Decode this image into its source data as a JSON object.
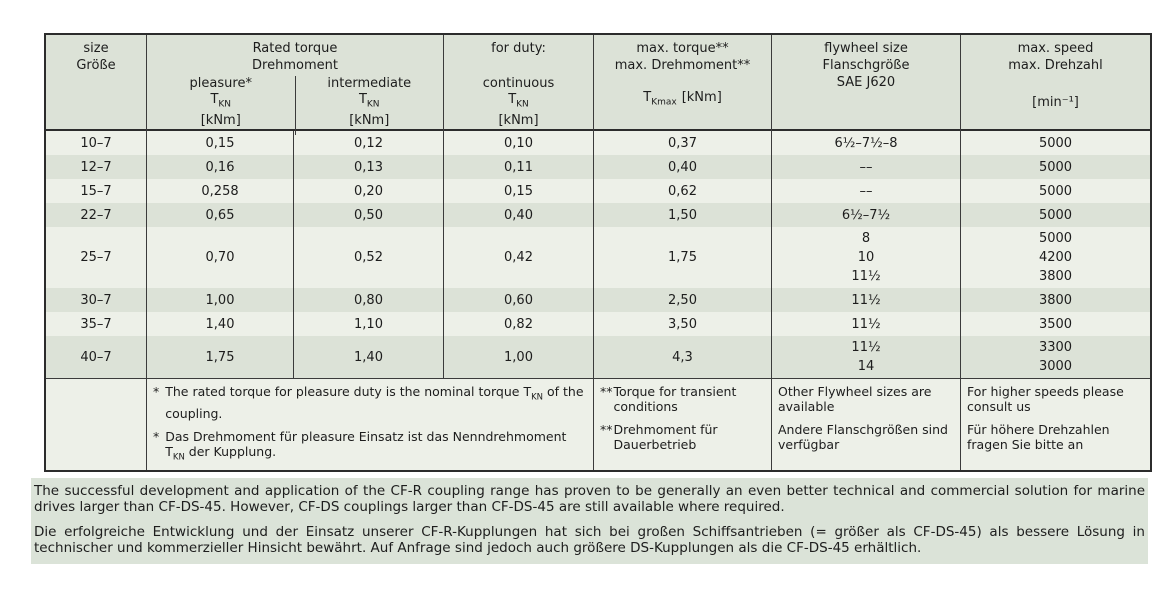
{
  "table": {
    "header": {
      "size": {
        "line1": "size",
        "line2": "Größe"
      },
      "rated": {
        "line1": "Rated torque",
        "line2": "Drehmoment",
        "sub": [
          {
            "duty": "pleasure*",
            "symbol_base": "T",
            "symbol_sub": "KN",
            "unit": "[kNm]"
          },
          {
            "duty": "intermediate",
            "symbol_base": "T",
            "symbol_sub": "KN",
            "unit": "[kNm]"
          }
        ]
      },
      "for_duty": {
        "line1": "for duty:",
        "duty": "continuous",
        "symbol_base": "T",
        "symbol_sub": "KN",
        "unit": "[kNm]"
      },
      "max_torque": {
        "line1": "max. torque**",
        "line2": "max. Drehmoment**",
        "symbol_base": "T",
        "symbol_sub": "Kmax",
        "unit": "[kNm]"
      },
      "flywheel": {
        "line1": "flywheel size",
        "line2": "Flanschgröße",
        "line3": "SAE J620"
      },
      "max_speed": {
        "line1": "max. speed",
        "line2": "max. Drehzahl",
        "unit": "[min⁻¹]"
      }
    },
    "rows": [
      {
        "size": "10–7",
        "pleasure": "0,15",
        "intermediate": "0,12",
        "continuous": "0,10",
        "max_torque": "0,37",
        "flywheel": [
          "6½–7½–8"
        ],
        "max_speed": [
          "5000"
        ]
      },
      {
        "size": "12–7",
        "pleasure": "0,16",
        "intermediate": "0,13",
        "continuous": "0,11",
        "max_torque": "0,40",
        "flywheel": [
          "––"
        ],
        "max_speed": [
          "5000"
        ]
      },
      {
        "size": "15–7",
        "pleasure": "0,258",
        "intermediate": "0,20",
        "continuous": "0,15",
        "max_torque": "0,62",
        "flywheel": [
          "––"
        ],
        "max_speed": [
          "5000"
        ]
      },
      {
        "size": "22–7",
        "pleasure": "0,65",
        "intermediate": "0,50",
        "continuous": "0,40",
        "max_torque": "1,50",
        "flywheel": [
          "6½–7½"
        ],
        "max_speed": [
          "5000"
        ]
      },
      {
        "size": "25–7",
        "pleasure": "0,70",
        "intermediate": "0,52",
        "continuous": "0,42",
        "max_torque": "1,75",
        "flywheel": [
          "8",
          "10",
          "11½"
        ],
        "max_speed": [
          "5000",
          "4200",
          "3800"
        ]
      },
      {
        "size": "30–7",
        "pleasure": "1,00",
        "intermediate": "0,80",
        "continuous": "0,60",
        "max_torque": "2,50",
        "flywheel": [
          "11½"
        ],
        "max_speed": [
          "3800"
        ]
      },
      {
        "size": "35–7",
        "pleasure": "1,40",
        "intermediate": "1,10",
        "continuous": "0,82",
        "max_torque": "3,50",
        "flywheel": [
          "11½"
        ],
        "max_speed": [
          "3500"
        ]
      },
      {
        "size": "40–7",
        "pleasure": "1,75",
        "intermediate": "1,40",
        "continuous": "1,00",
        "max_torque": "4,3",
        "flywheel": [
          "11½",
          "14"
        ],
        "max_speed": [
          "3300",
          "3000"
        ]
      }
    ],
    "footnotes": {
      "rated": [
        {
          "marker": "*",
          "pre": "The rated torque for pleasure duty is the nominal torque T",
          "sub": "KN",
          "post": " of the coupling."
        },
        {
          "marker": "*",
          "pre": "Das Drehmoment für pleasure Einsatz ist das Nenndrehmoment T",
          "sub": "KN",
          "post": " der Kupplung."
        }
      ],
      "max_torque": [
        {
          "marker": "**",
          "text": "Torque for transient conditions"
        },
        {
          "marker": "**",
          "text": "Drehmoment für Dauerbetrieb"
        }
      ],
      "flywheel": [
        "Other Flywheel sizes are available",
        "Andere Flanschgrößen sind verfügbar"
      ],
      "max_speed": [
        "For higher speeds please consult us",
        "Für höhere Drehzahlen fragen Sie bitte an"
      ]
    }
  },
  "notes": {
    "en": "The successful development and application of the CF-R coupling range has proven to be generally an even better technical and commercial solution for marine drives larger than CF-DS-45. However, CF-DS couplings larger than CF-DS-45 are still available where required.",
    "de": "Die erfolgreiche Entwicklung und der Einsatz unserer CF-R-Kupplungen hat sich bei großen Schiffsantrieben (= größer als CF-DS-45) als bessere Lösung in technischer und kommerzieller Hinsicht bewährt. Auf Anfrage sind jedoch auch größere DS-Kupplungen als die CF-DS-45 erhältlich."
  },
  "colors": {
    "stripe_light": "#edf0e8",
    "stripe_dark": "#dce2d7",
    "notes_panel": "#dbe3d8",
    "border": "#3b3b3b"
  }
}
